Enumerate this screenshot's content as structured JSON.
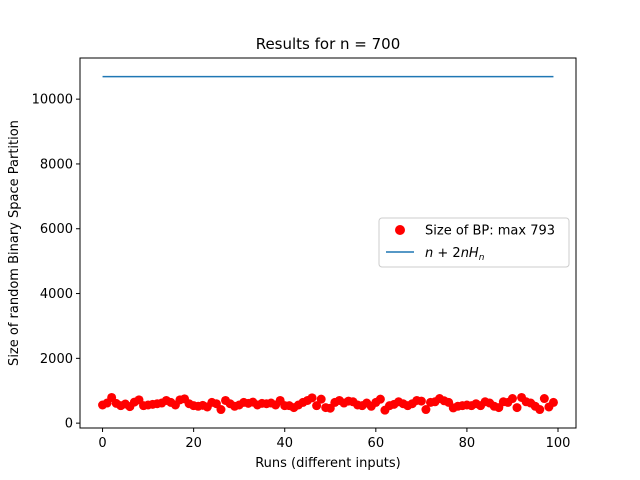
{
  "chart_data": {
    "type": "scatter",
    "title": "Results for n = 700",
    "xlabel": "Runs (different inputs)",
    "ylabel": "Size of random Binary Space Partition",
    "xlim": [
      -4.95,
      103.95
    ],
    "ylim": [
      -150,
      11270
    ],
    "x_ticks": [
      0,
      20,
      40,
      60,
      80,
      100
    ],
    "y_ticks": [
      0,
      2000,
      4000,
      6000,
      8000,
      10000
    ],
    "grid": false,
    "legend_position": "center-right",
    "series": [
      {
        "name": "Size of BP: max 793",
        "kind": "points",
        "color": "#ff0000",
        "x": [
          0,
          1,
          2,
          3,
          4,
          5,
          6,
          7,
          8,
          9,
          10,
          11,
          12,
          13,
          14,
          15,
          16,
          17,
          18,
          19,
          20,
          21,
          22,
          23,
          24,
          25,
          26,
          27,
          28,
          29,
          30,
          31,
          32,
          33,
          34,
          35,
          36,
          37,
          38,
          39,
          40,
          41,
          42,
          43,
          44,
          45,
          46,
          47,
          48,
          49,
          50,
          51,
          52,
          53,
          54,
          55,
          56,
          57,
          58,
          59,
          60,
          61,
          62,
          63,
          64,
          65,
          66,
          67,
          68,
          69,
          70,
          71,
          72,
          73,
          74,
          75,
          76,
          77,
          78,
          79,
          80,
          81,
          82,
          83,
          84,
          85,
          86,
          87,
          88,
          89,
          90,
          91,
          92,
          93,
          94,
          95,
          96,
          97,
          98,
          99
        ],
        "y": [
          560,
          620,
          793,
          610,
          540,
          590,
          510,
          650,
          720,
          540,
          560,
          580,
          600,
          620,
          700,
          640,
          560,
          720,
          750,
          600,
          540,
          520,
          550,
          500,
          640,
          600,
          420,
          700,
          600,
          520,
          560,
          640,
          610,
          650,
          560,
          610,
          600,
          620,
          560,
          700,
          540,
          540,
          480,
          560,
          640,
          700,
          780,
          540,
          740,
          480,
          460,
          640,
          700,
          620,
          680,
          660,
          560,
          540,
          620,
          520,
          640,
          740,
          400,
          540,
          580,
          660,
          600,
          540,
          600,
          700,
          680,
          420,
          640,
          660,
          760,
          690,
          640,
          470,
          520,
          540,
          560,
          540,
          600,
          540,
          660,
          620,
          520,
          480,
          660,
          640,
          760,
          480,
          793,
          660,
          620,
          520,
          420,
          760,
          500,
          640
        ]
      },
      {
        "name": "$n + 2nH_n$",
        "kind": "line",
        "color": "#1f77b4",
        "x": [
          0,
          99
        ],
        "y": [
          10695,
          10695
        ]
      }
    ]
  }
}
